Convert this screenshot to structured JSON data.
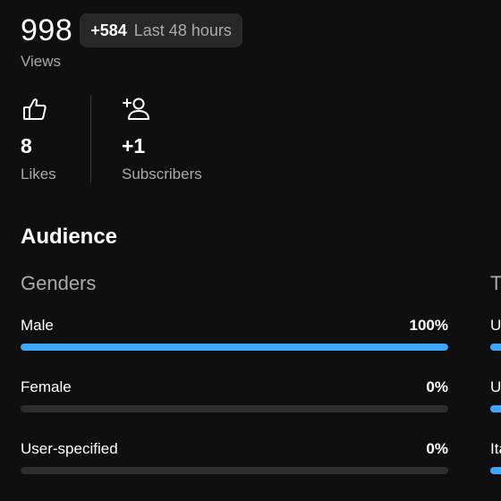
{
  "views": {
    "count": "998",
    "delta": "+584",
    "period": "Last 48 hours",
    "label": "Views"
  },
  "metrics": [
    {
      "icon": "thumbs-up-icon",
      "value": "8",
      "label": "Likes"
    },
    {
      "icon": "add-person-icon",
      "value": "+1",
      "label": "Subscribers"
    }
  ],
  "audience": {
    "title": "Audience",
    "genders": {
      "title": "Genders",
      "rows": [
        {
          "label": "Male",
          "percent": "100%",
          "fill": 100
        },
        {
          "label": "Female",
          "percent": "0%",
          "fill": 0
        },
        {
          "label": "User-specified",
          "percent": "0%",
          "fill": 0
        }
      ]
    },
    "second_panel": {
      "title": "T",
      "rows": [
        {
          "label": "U"
        },
        {
          "label": "U"
        },
        {
          "label": "Ita"
        }
      ]
    }
  },
  "colors": {
    "background": "#0f0f0f",
    "accent": "#3ea6ff",
    "muted_text": "#aaaaaa",
    "chip": "#282828",
    "track": "#2e2e2e"
  }
}
